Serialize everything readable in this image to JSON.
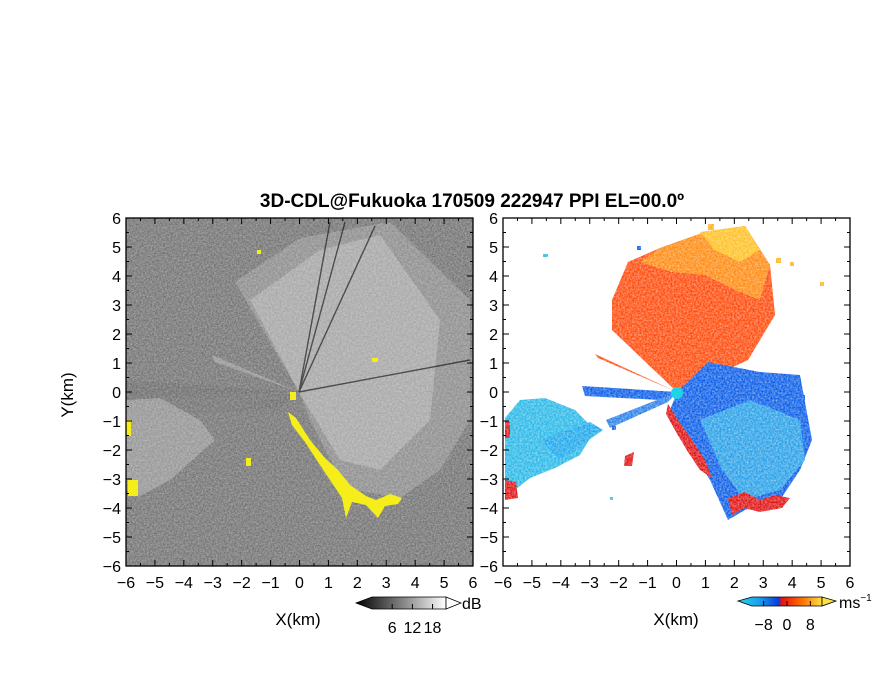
{
  "chart_data": {
    "type": "heatmap",
    "title": "3D-CDL@Fukuoka 170509 222947 PPI EL=00.0º",
    "panels": [
      {
        "name": "reflectivity",
        "xlabel": "X(km)",
        "ylabel": "Y(km)",
        "xlim": [
          -6,
          6
        ],
        "ylim": [
          -6,
          6
        ],
        "xticks": [
          "−6",
          "−5",
          "−4",
          "−3",
          "−2",
          "−1",
          "0",
          "1",
          "2",
          "3",
          "4",
          "5",
          "6"
        ],
        "yticks": [
          "6",
          "5",
          "4",
          "3",
          "2",
          "1",
          "0",
          "−1",
          "−2",
          "−3",
          "−4",
          "−5",
          "−6"
        ],
        "colorbar": {
          "unit": "dB",
          "ticks": [
            "6",
            "12",
            "18"
          ],
          "range": [
            0,
            22
          ]
        },
        "palette": "grayscale",
        "highlight_color": "#f5ee1a"
      },
      {
        "name": "radial-velocity",
        "xlabel": "X(km)",
        "xlim": [
          -6,
          6
        ],
        "ylim": [
          -6,
          6
        ],
        "xticks": [
          "−6",
          "−5",
          "−4",
          "−3",
          "−2",
          "−1",
          "0",
          "1",
          "2",
          "3",
          "4",
          "5",
          "6"
        ],
        "colorbar": {
          "unit": "ms",
          "unit_exp": "−1",
          "ticks": [
            "−8",
            "0",
            "8"
          ],
          "range": [
            -12,
            12
          ]
        },
        "palette": "blue-red",
        "colors": {
          "approach": "#0a5de8",
          "far_approach": "#28b8e8",
          "recede": "#ff4a0a",
          "far_recede": "#ffb01a",
          "radar": "#20d4e8"
        }
      }
    ]
  }
}
